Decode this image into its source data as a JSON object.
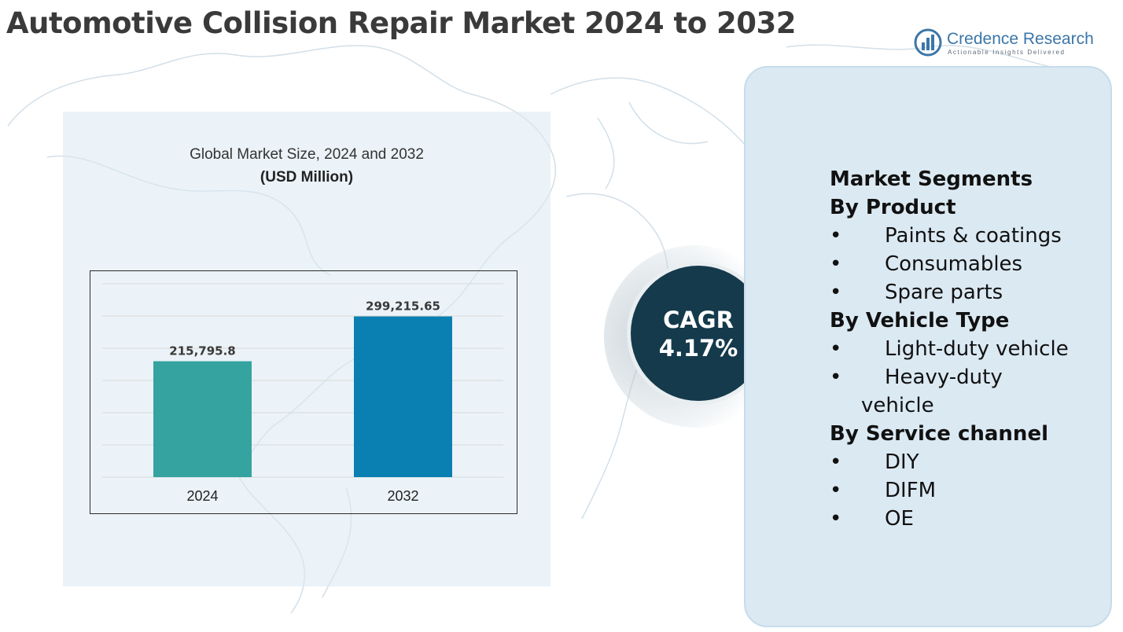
{
  "title": "Automotive Collision Repair Market 2024 to 2032",
  "logo": {
    "name": "Credence Research",
    "tagline": "Actionable Insights Delivered",
    "icon": "bar-chart-logo-icon"
  },
  "chart": {
    "title": "Global Market Size, 2024 and 2032",
    "subtitle": "(USD Million)"
  },
  "chart_data": {
    "type": "bar",
    "title": "Global Market Size, 2024 and 2032",
    "subtitle": "(USD Million)",
    "categories": [
      "2024",
      "2032"
    ],
    "values": [
      215795.8,
      299215.65
    ],
    "value_labels": [
      "215,795.8",
      "299,215.65"
    ],
    "colors": [
      "#35a3a0",
      "#0a7fb1"
    ],
    "ylim": [
      0,
      360000
    ],
    "grid": true,
    "xlabel": "",
    "ylabel": ""
  },
  "cagr": {
    "label": "CAGR",
    "value": "4.17%"
  },
  "segments": {
    "heading": "Market Segments",
    "bullet": "•",
    "groups": [
      {
        "title": "By Product",
        "items": [
          "Paints & coatings",
          "Consumables",
          "Spare parts"
        ]
      },
      {
        "title": "By Vehicle Type",
        "items": [
          "Light-duty vehicle",
          "Heavy-duty"
        ],
        "continuation": "vehicle"
      },
      {
        "title": "By Service channel",
        "items": [
          "DIY",
          "DIFM",
          "OE"
        ]
      }
    ]
  },
  "colors": {
    "title": "#3a3a3a",
    "cagr_circle": "#153a4c",
    "panel": "#dbe9f3",
    "logo": "#3b76a8"
  }
}
